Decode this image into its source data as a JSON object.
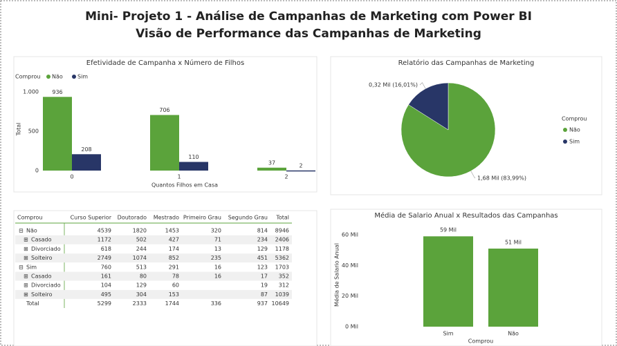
{
  "header": {
    "title": "Mini- Projeto 1 - Análise de Campanhas de Marketing com Power BI",
    "subtitle": "Visão de Performance das Campanhas de Marketing"
  },
  "chart_data": [
    {
      "type": "bar",
      "title": "Efetividade de Campanha x Número de Filhos",
      "legend_title": "Comprou",
      "categories": [
        "0",
        "1",
        "2"
      ],
      "x_label": "Quantos Filhos em Casa",
      "y_label": "Total",
      "series": [
        {
          "name": "Não",
          "color": "#5ba33b",
          "values": [
            936,
            706,
            37
          ]
        },
        {
          "name": "Sim",
          "color": "#283667",
          "values": [
            208,
            110,
            2
          ]
        }
      ],
      "ylim": [
        0,
        1000
      ],
      "yticks": [
        0,
        500,
        {
          "value": 1000,
          "label": "1.000"
        }
      ],
      "legend": "top-left"
    },
    {
      "type": "pie",
      "title": "Relatório das Campanhas de Marketing",
      "legend_title": "Comprou",
      "categories": [
        "Não",
        "Sim"
      ],
      "colors": [
        "#5ba33b",
        "#283667"
      ],
      "values": [
        1680,
        320
      ],
      "value_labels": [
        "1,68 Mil (83,99%)",
        "0,32 Mil (16,01%)"
      ],
      "legend": "right"
    },
    {
      "type": "bar",
      "title": "Média de Salario Anual x Resultados das Campanhas",
      "categories": [
        "Sim",
        "Não"
      ],
      "values": [
        59000,
        51000
      ],
      "value_labels": [
        "59 Mil",
        "51 Mil"
      ],
      "color": "#5ba33b",
      "x_label": "Comprou",
      "y_label": "Média de Salario Anual",
      "ylim": [
        0,
        62000
      ],
      "yticks": [
        {
          "value": 0,
          "label": "0 Mil"
        },
        {
          "value": 20000,
          "label": "20 Mil"
        },
        {
          "value": 40000,
          "label": "40 Mil"
        },
        {
          "value": 60000,
          "label": "60 Mil"
        }
      ]
    }
  ],
  "table": {
    "columns": [
      "Comprou",
      "Curso Superior",
      "Doutorado",
      "Mestrado",
      "Primeiro Grau",
      "Segundo Grau",
      "Total"
    ],
    "groups": [
      {
        "label": "Não",
        "values": [
          "4539",
          "1820",
          "1453",
          "320",
          "814",
          "8946"
        ],
        "children": [
          {
            "label": "Casado",
            "values": [
              "1172",
              "502",
              "427",
              "71",
              "234",
              "2406"
            ]
          },
          {
            "label": "Divorciado",
            "values": [
              "618",
              "244",
              "174",
              "13",
              "129",
              "1178"
            ]
          },
          {
            "label": "Solteiro",
            "values": [
              "2749",
              "1074",
              "852",
              "235",
              "451",
              "5362"
            ]
          }
        ]
      },
      {
        "label": "Sim",
        "values": [
          "760",
          "513",
          "291",
          "16",
          "123",
          "1703"
        ],
        "children": [
          {
            "label": "Casado",
            "values": [
              "161",
              "80",
              "78",
              "16",
              "17",
              "352"
            ]
          },
          {
            "label": "Divorciado",
            "values": [
              "104",
              "129",
              "60",
              null,
              "19",
              "312"
            ]
          },
          {
            "label": "Solteiro",
            "values": [
              "495",
              "304",
              "153",
              null,
              "87",
              "1039"
            ]
          }
        ]
      }
    ],
    "total": {
      "label": "Total",
      "values": [
        "5299",
        "2333",
        "1744",
        "336",
        "937",
        "10649"
      ]
    }
  }
}
